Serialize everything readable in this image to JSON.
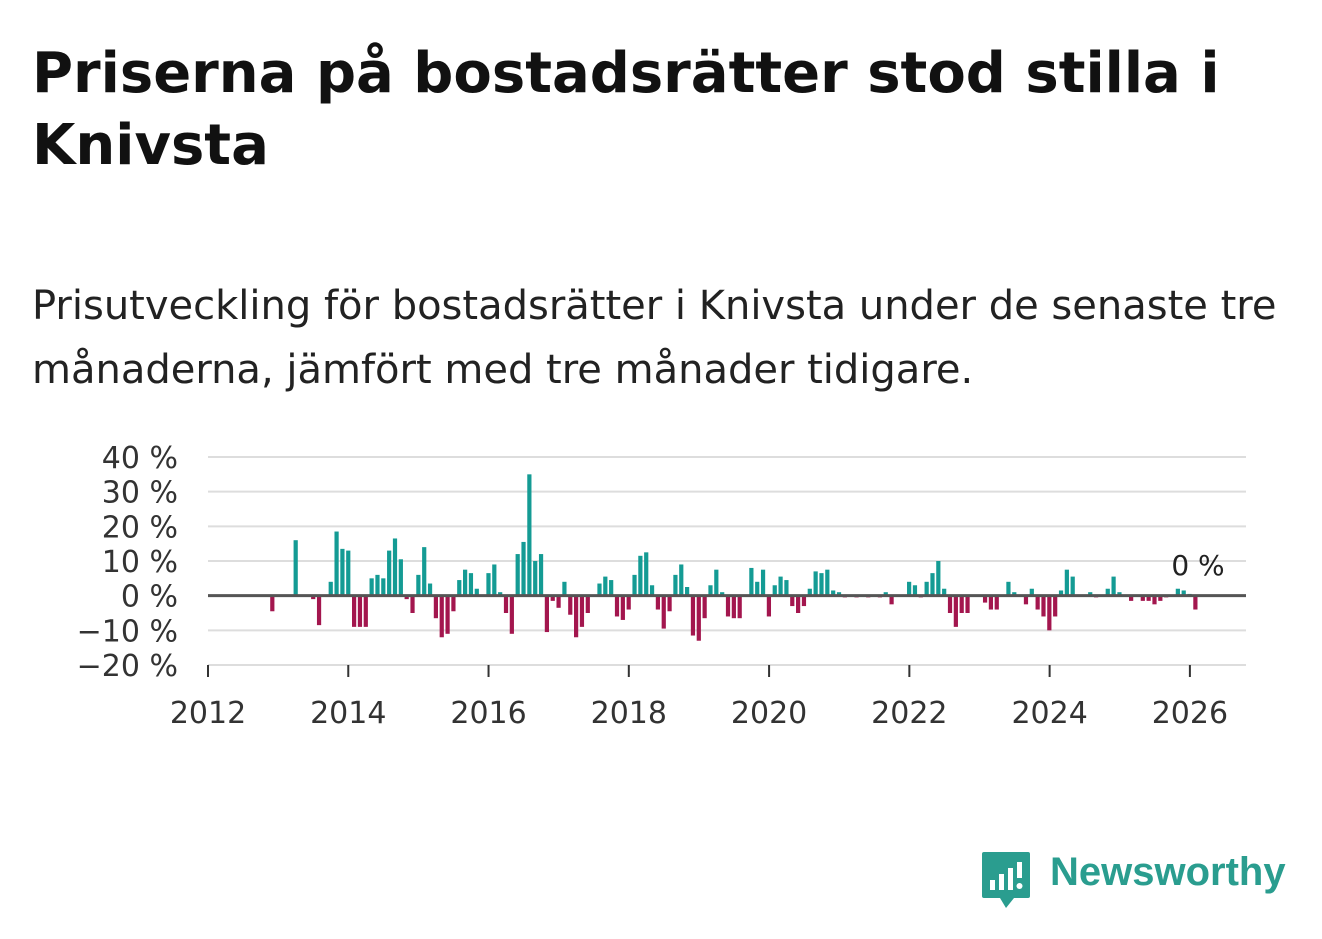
{
  "title": "Priserna på bostadsrätter stod stilla i Knivsta",
  "subtitle": "Prisutveckling för bostadsrätter i Knivsta under de senaste tre månaderna, jämfört med tre månader tidigare.",
  "brand": {
    "name": "Newsworthy",
    "color": "#2a9d8f"
  },
  "colors": {
    "positive": "#149b94",
    "negative": "#a3164e",
    "grid": "#dddddd",
    "zero": "#555555"
  },
  "chart_data": {
    "type": "bar",
    "title": "Prisutveckling för bostadsrätter i Knivsta",
    "xlabel": "",
    "ylabel": "",
    "ylim": [
      -20,
      40
    ],
    "xlim": [
      2012,
      2026.8
    ],
    "yticks": [
      40,
      30,
      20,
      10,
      0,
      -10,
      -20
    ],
    "ytick_labels": [
      "40 %",
      "30 %",
      "20 %",
      "10 %",
      "0 %",
      "−10 %",
      "−20 %"
    ],
    "xticks": [
      2012,
      2014,
      2016,
      2018,
      2020,
      2022,
      2024,
      2026
    ],
    "xtick_labels": [
      "2012",
      "2014",
      "2016",
      "2018",
      "2020",
      "2022",
      "2024",
      "2026"
    ],
    "last_value_label": "0 %",
    "start": 2012.917,
    "step": 0.0833,
    "values": [
      -4.5,
      0,
      0,
      0,
      16,
      0,
      0,
      -1,
      -8.5,
      0,
      4,
      18.5,
      13.5,
      13,
      -9,
      -9,
      -9,
      5,
      6,
      5,
      13,
      16.5,
      10.5,
      -1,
      -5,
      6,
      14,
      3.5,
      -6.5,
      -12,
      -11,
      -4.5,
      4.5,
      7.5,
      6.5,
      2,
      0,
      6.5,
      9,
      1,
      -5,
      -11,
      12,
      15.5,
      35,
      10,
      12,
      -10.5,
      -1.5,
      -3.5,
      4,
      -5.5,
      -12,
      -9,
      -5,
      0,
      3.5,
      5.5,
      4.5,
      -6,
      -7,
      -4,
      6,
      11.5,
      12.5,
      3,
      -4,
      -9.5,
      -4.5,
      6,
      9,
      2.5,
      -11.5,
      -13,
      -6.5,
      3,
      7.5,
      1,
      -6,
      -6.5,
      -6.5,
      0,
      8,
      4,
      7.5,
      -6,
      3,
      5.5,
      4.5,
      -3,
      -5,
      -3,
      2,
      7,
      6.5,
      7.5,
      1.5,
      1,
      -0.5,
      0,
      -0.5,
      0,
      -0.5,
      0,
      -0.5,
      1,
      -2.5,
      0,
      0,
      4,
      3,
      -0.5,
      4,
      6.5,
      10,
      2,
      -5,
      -9,
      -5,
      -5,
      0,
      0,
      -2,
      -4,
      -4,
      0,
      4,
      1,
      0,
      -2.5,
      2,
      -4,
      -6,
      -10,
      -6,
      1.5,
      7.5,
      5.5,
      0,
      0,
      1,
      -0.5,
      0,
      2,
      5.5,
      1,
      0,
      -1.5,
      0,
      -1.5,
      -1.5,
      -2.5,
      -1.5,
      -0.5,
      0,
      2,
      1.5,
      0.5,
      -4,
      0
    ]
  }
}
